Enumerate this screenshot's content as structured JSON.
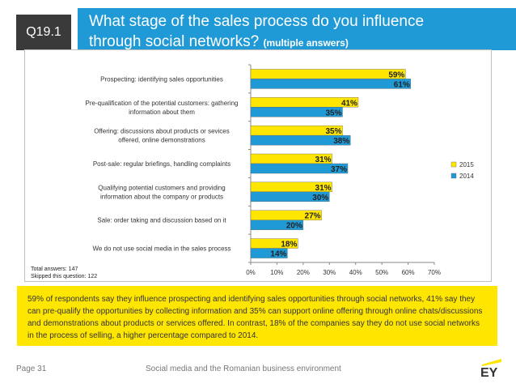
{
  "header": {
    "question_id": "Q19.1",
    "title_line1": "What stage of the sales process do you influence",
    "title_line2": "through social networks?",
    "title_note": "(multiple answers)"
  },
  "colors": {
    "series_2015": "#ffe600",
    "series_2014": "#1f9ad6",
    "accent": "#1f9ad6"
  },
  "chart_data": {
    "type": "bar",
    "orientation": "horizontal",
    "categories": [
      [
        "Prospecting: identifying sales opportunities"
      ],
      [
        "Pre-qualification of the potential customers: gathering",
        "information about them"
      ],
      [
        "Offering: discussions about products or sevices",
        "offered, online demonstrations"
      ],
      [
        "Post-sale: regular briefings, handling complaints"
      ],
      [
        "Qualifying potential customers and providing",
        "information about the company or products"
      ],
      [
        "Sale: order taking and discussion based on it"
      ],
      [
        "We do not use social media in the sales process"
      ]
    ],
    "series": [
      {
        "name": "2015",
        "values": [
          59,
          41,
          35,
          31,
          31,
          27,
          18
        ]
      },
      {
        "name": "2014",
        "values": [
          61,
          35,
          38,
          37,
          30,
          20,
          14
        ]
      }
    ],
    "xlim": [
      0,
      70
    ],
    "ticks": [
      0,
      10,
      20,
      30,
      40,
      50,
      60,
      70
    ],
    "value_suffix": "%",
    "legend": "right",
    "title": "",
    "xlabel": "",
    "ylabel": ""
  },
  "totals": {
    "answers": "Total answers: 147",
    "skipped": "Skipped this question: 122"
  },
  "summary": "59% of respondents say they influence prospecting and identifying sales opportunities through social networks, 41% say they can pre-qualify the opportunities by collecting information and 35% can support online offering through online chats/discussions and demonstrations about products or services offered. In contrast, 18% of the companies say they do not use social networks in the process of selling, a higher percentage compared to 2014.",
  "footer": {
    "page": "Page 31",
    "document": "Social media and the Romanian business environment",
    "logo_text": "EY"
  }
}
